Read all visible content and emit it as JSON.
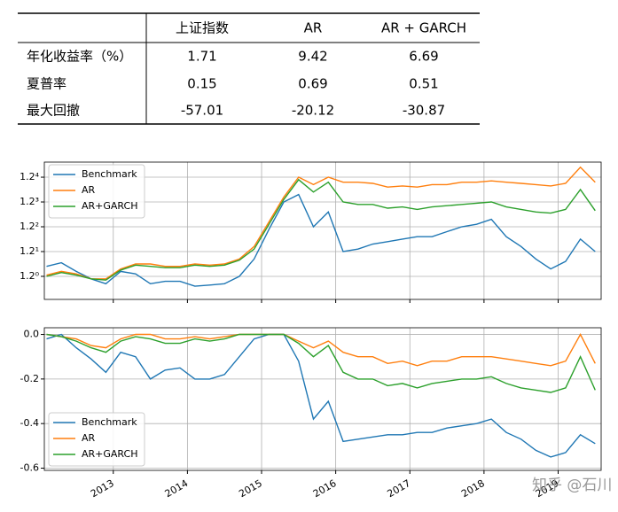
{
  "table": {
    "columns": [
      "上证指数",
      "AR",
      "AR + GARCH"
    ],
    "rows": [
      {
        "label": "年化收益率（%）",
        "values": [
          1.71,
          9.42,
          6.69
        ]
      },
      {
        "label": "夏普率",
        "values": [
          0.15,
          0.69,
          0.51
        ]
      },
      {
        "label": "最大回撤",
        "values": [
          -57.01,
          -20.12,
          -30.87
        ]
      }
    ]
  },
  "chart_data": [
    {
      "type": "line",
      "yscale": "log",
      "grid": true,
      "legend": "upper left",
      "x": [
        2012.1,
        2012.3,
        2012.5,
        2012.7,
        2012.9,
        2013.1,
        2013.3,
        2013.5,
        2013.7,
        2013.9,
        2014.1,
        2014.3,
        2014.5,
        2014.7,
        2014.9,
        2015.1,
        2015.3,
        2015.5,
        2015.7,
        2015.9,
        2016.1,
        2016.3,
        2016.5,
        2016.7,
        2016.9,
        2017.1,
        2017.3,
        2017.5,
        2017.7,
        2017.9,
        2018.1,
        2018.3,
        2018.5,
        2018.7,
        2018.9,
        2019.1,
        2019.3,
        2019.5
      ],
      "xlim": [
        2012.07,
        2019.58
      ],
      "xticks": [
        2013,
        2014,
        2015,
        2016,
        2017,
        2018,
        2019
      ],
      "ylim": [
        0.844,
        2.317
      ],
      "yticks": [
        {
          "value": 1,
          "label": "1.2⁰"
        },
        {
          "value": 1.2,
          "label": "1.2¹"
        },
        {
          "value": 1.44,
          "label": "1.2²"
        },
        {
          "value": 1.728,
          "label": "1.2³"
        },
        {
          "value": 2.0736,
          "label": "1.2⁴"
        }
      ],
      "series": [
        {
          "name": "Benchmark",
          "color": "#1f77b4",
          "values": [
            1.076,
            1.105,
            1.037,
            0.982,
            0.947,
            1.037,
            1.018,
            0.947,
            0.964,
            0.964,
            0.93,
            0.938,
            0.947,
            1.0,
            1.136,
            1.414,
            1.728,
            1.825,
            1.44,
            1.606,
            1.2,
            1.222,
            1.268,
            1.291,
            1.315,
            1.339,
            1.339,
            1.389,
            1.44,
            1.467,
            1.521,
            1.339,
            1.245,
            1.136,
            1.056,
            1.116,
            1.315,
            1.2
          ]
        },
        {
          "name": "AR",
          "color": "#ff7f0e",
          "values": [
            1.009,
            1.037,
            1.018,
            0.982,
            0.982,
            1.056,
            1.095,
            1.095,
            1.076,
            1.076,
            1.095,
            1.086,
            1.095,
            1.136,
            1.245,
            1.494,
            1.792,
            2.074,
            1.963,
            2.074,
            1.999,
            1.999,
            1.981,
            1.928,
            1.945,
            1.928,
            1.963,
            1.963,
            1.999,
            1.999,
            2.018,
            1.999,
            1.981,
            1.963,
            1.945,
            1.981,
            2.231,
            1.999
          ]
        },
        {
          "name": "AR+GARCH",
          "color": "#2ca02c",
          "values": [
            1.0,
            1.028,
            1.009,
            0.982,
            0.973,
            1.047,
            1.086,
            1.076,
            1.066,
            1.066,
            1.086,
            1.076,
            1.086,
            1.126,
            1.222,
            1.467,
            1.76,
            2.036,
            1.859,
            1.999,
            1.728,
            1.697,
            1.697,
            1.651,
            1.666,
            1.636,
            1.666,
            1.682,
            1.697,
            1.712,
            1.728,
            1.666,
            1.636,
            1.606,
            1.592,
            1.636,
            1.893,
            1.621
          ]
        }
      ]
    },
    {
      "type": "line",
      "grid": true,
      "legend": "lower left",
      "x": [
        2012.1,
        2012.3,
        2012.5,
        2012.7,
        2012.9,
        2013.1,
        2013.3,
        2013.5,
        2013.7,
        2013.9,
        2014.1,
        2014.3,
        2014.5,
        2014.7,
        2014.9,
        2015.1,
        2015.3,
        2015.5,
        2015.7,
        2015.9,
        2016.1,
        2016.3,
        2016.5,
        2016.7,
        2016.9,
        2017.1,
        2017.3,
        2017.5,
        2017.7,
        2017.9,
        2018.1,
        2018.3,
        2018.5,
        2018.7,
        2018.9,
        2019.1,
        2019.3,
        2019.5
      ],
      "xlim": [
        2012.07,
        2019.58
      ],
      "xticks": [
        2013,
        2014,
        2015,
        2016,
        2017,
        2018,
        2019
      ],
      "ylim": [
        -0.61,
        0.03
      ],
      "yticks": [
        {
          "value": 0,
          "label": "0.0"
        },
        -0.2,
        -0.4,
        -0.6
      ],
      "series": [
        {
          "name": "Benchmark",
          "color": "#1f77b4",
          "values": [
            -0.02,
            0,
            -0.06,
            -0.11,
            -0.17,
            -0.08,
            -0.1,
            -0.2,
            -0.16,
            -0.15,
            -0.2,
            -0.2,
            -0.18,
            -0.1,
            -0.02,
            0,
            0,
            -0.12,
            -0.38,
            -0.3,
            -0.48,
            -0.47,
            -0.46,
            -0.45,
            -0.45,
            -0.44,
            -0.44,
            -0.42,
            -0.41,
            -0.4,
            -0.38,
            -0.44,
            -0.47,
            -0.52,
            -0.55,
            -0.53,
            -0.45,
            -0.49
          ]
        },
        {
          "name": "AR",
          "color": "#ff7f0e",
          "values": [
            0,
            -0.01,
            -0.02,
            -0.05,
            -0.06,
            -0.02,
            0,
            0,
            -0.02,
            -0.02,
            -0.01,
            -0.02,
            -0.01,
            0,
            0,
            0,
            0,
            -0.03,
            -0.06,
            -0.03,
            -0.08,
            -0.1,
            -0.1,
            -0.13,
            -0.12,
            -0.14,
            -0.12,
            -0.12,
            -0.1,
            -0.1,
            -0.1,
            -0.11,
            -0.12,
            -0.13,
            -0.14,
            -0.12,
            0,
            -0.13
          ]
        },
        {
          "name": "AR+GARCH",
          "color": "#2ca02c",
          "values": [
            0,
            -0.01,
            -0.03,
            -0.06,
            -0.08,
            -0.03,
            -0.01,
            -0.02,
            -0.04,
            -0.04,
            -0.02,
            -0.03,
            -0.02,
            0,
            0,
            0,
            0,
            -0.04,
            -0.1,
            -0.05,
            -0.17,
            -0.2,
            -0.2,
            -0.23,
            -0.22,
            -0.24,
            -0.22,
            -0.21,
            -0.2,
            -0.2,
            -0.19,
            -0.22,
            -0.24,
            -0.25,
            -0.26,
            -0.24,
            -0.1,
            -0.25
          ]
        }
      ]
    }
  ],
  "watermark": "知乎 @石川"
}
